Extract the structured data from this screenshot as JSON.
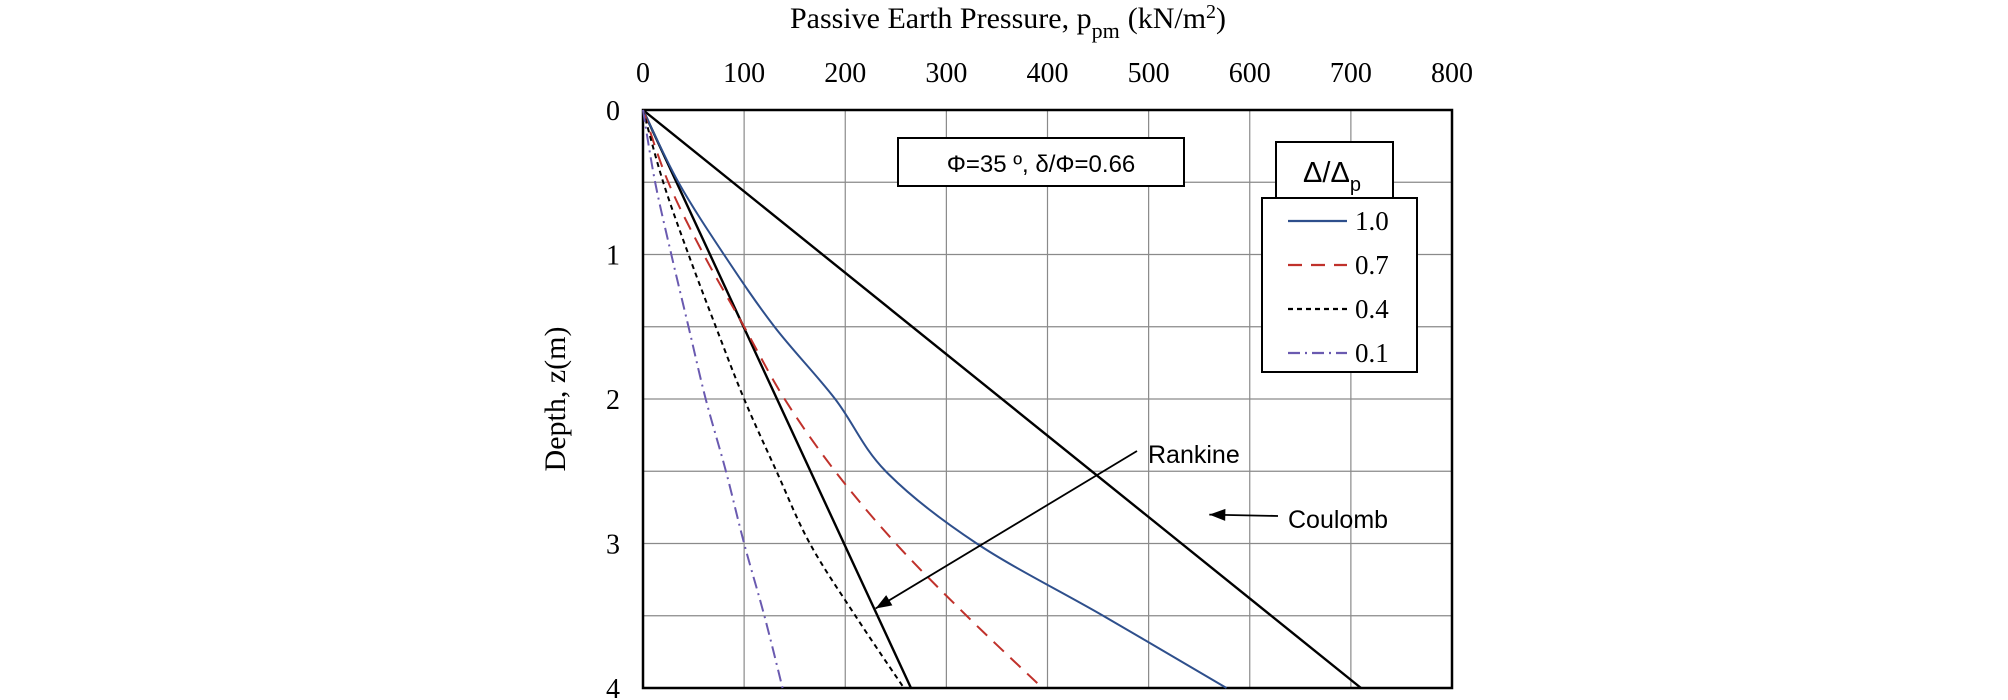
{
  "chart_data": {
    "type": "line",
    "title": "",
    "xlabel": {
      "main": "Passive Earth Pressure, p",
      "sub": "pm",
      "unit_open": "(kN/m",
      "unit_sup": "2",
      "unit_close": ")"
    },
    "ylabel": "Depth, z(m)",
    "xlim": [
      0,
      800
    ],
    "ylim": [
      0,
      4
    ],
    "x_axis_position": "top",
    "y_inverted": true,
    "grid": true,
    "x_ticks": [
      0,
      100,
      200,
      300,
      400,
      500,
      600,
      700,
      800
    ],
    "y_ticks": [
      0,
      1,
      2,
      3,
      4
    ],
    "parameter_box": "Φ=35 º, δ/Φ=0.66",
    "legend": {
      "title_main": "Δ/Δ",
      "title_sub": "p",
      "placement": "top-right"
    },
    "series": [
      {
        "name": "1.0",
        "style": "solid",
        "color": "#2e4f8c",
        "points": [
          [
            0,
            0
          ],
          [
            35,
            0.5
          ],
          [
            80,
            1.0
          ],
          [
            130,
            1.5
          ],
          [
            190,
            2.0
          ],
          [
            240,
            2.5
          ],
          [
            330,
            3.0
          ],
          [
            455,
            3.5
          ],
          [
            577,
            4.0
          ]
        ]
      },
      {
        "name": "0.7",
        "style": "dashed",
        "color": "#c0312b",
        "points": [
          [
            0,
            0
          ],
          [
            25,
            0.5
          ],
          [
            60,
            1.0
          ],
          [
            100,
            1.5
          ],
          [
            140,
            2.0
          ],
          [
            190,
            2.5
          ],
          [
            250,
            3.0
          ],
          [
            320,
            3.5
          ],
          [
            395,
            4.0
          ]
        ]
      },
      {
        "name": "0.4",
        "style": "dotted",
        "color": "#000000",
        "points": [
          [
            0,
            0
          ],
          [
            20,
            0.5
          ],
          [
            45,
            1.0
          ],
          [
            72,
            1.5
          ],
          [
            100,
            2.0
          ],
          [
            132,
            2.5
          ],
          [
            165,
            3.0
          ],
          [
            210,
            3.5
          ],
          [
            258,
            4.0
          ]
        ]
      },
      {
        "name": "0.1",
        "style": "dashdot",
        "color": "#6a5ab0",
        "points": [
          [
            0,
            0
          ],
          [
            12,
            0.5
          ],
          [
            28,
            1.0
          ],
          [
            45,
            1.5
          ],
          [
            62,
            2.0
          ],
          [
            82,
            2.5
          ],
          [
            100,
            3.0
          ],
          [
            120,
            3.5
          ],
          [
            138,
            4.0
          ]
        ]
      }
    ],
    "reference_lines": [
      {
        "name": "Rankine",
        "color": "#000000",
        "points": [
          [
            0,
            0
          ],
          [
            265,
            4.0
          ]
        ]
      },
      {
        "name": "Coulomb",
        "color": "#000000",
        "points": [
          [
            0,
            0
          ],
          [
            710,
            4.0
          ]
        ]
      }
    ],
    "annotations": [
      {
        "text": "Rankine",
        "target": [
          230,
          3.45
        ]
      },
      {
        "text": "Coulomb",
        "target": [
          560,
          2.8
        ]
      }
    ]
  }
}
